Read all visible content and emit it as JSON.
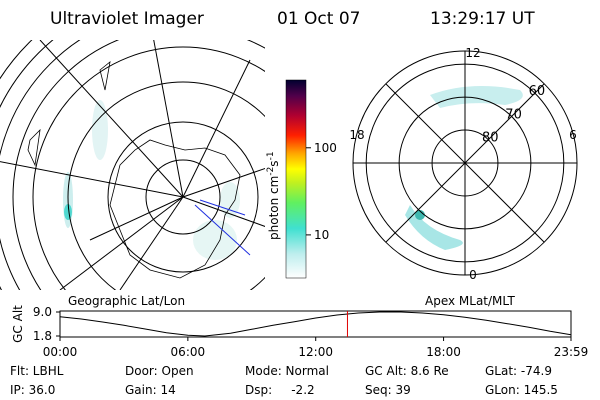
{
  "header": {
    "title": "Ultraviolet Imager",
    "date": "01 Oct 07",
    "time": "13:29:17 UT"
  },
  "colorbar": {
    "label": [
      "photon cm",
      "-2",
      "s",
      "-1"
    ],
    "log": true,
    "lim": [
      3.2,
      600
    ],
    "ticks": [
      10,
      100
    ]
  },
  "geo_map": {
    "label": "Geographic Lat/Lon"
  },
  "mag_map": {
    "label": "Apex MLat/MLT",
    "lat_lim": [
      56,
      90
    ],
    "lat_rings": [
      60,
      70,
      80
    ],
    "mlt_labels": [
      "12",
      "18",
      "6",
      "0"
    ]
  },
  "alt_plot": {
    "ylabel": "GC Alt",
    "ylim": [
      1.8,
      9.0
    ],
    "yticks": [
      {
        "value": 9.0,
        "label": "9.0"
      },
      {
        "value": 1.8,
        "label": "1.8"
      }
    ],
    "xlim": [
      0,
      23.98
    ],
    "xticks": [
      {
        "value": 0,
        "label": "00:00"
      },
      {
        "value": 6,
        "label": "06:00"
      },
      {
        "value": 12,
        "label": "12:00"
      },
      {
        "value": 18,
        "label": "18:00"
      },
      {
        "value": 23.98,
        "label": "23:59"
      }
    ],
    "x": [
      0,
      1,
      2,
      3,
      4,
      5,
      6,
      6.8,
      8,
      9,
      10,
      11,
      12,
      13,
      14,
      15,
      16,
      17,
      18,
      19,
      20,
      21,
      22,
      23,
      23.98
    ],
    "values": [
      7.6,
      6.9,
      6.0,
      5.0,
      3.9,
      2.8,
      2.0,
      1.8,
      2.6,
      3.8,
      5.0,
      6.1,
      7.2,
      8.1,
      8.7,
      9.0,
      9.0,
      8.7,
      8.2,
      7.4,
      6.5,
      5.5,
      4.4,
      3.2,
      2.2
    ],
    "line_color": "#000000",
    "marker": 13.49,
    "marker_color": "#e00000"
  },
  "info": [
    [
      "Flt: LBHL",
      "Door: Open",
      "Mode: Normal",
      "GC Alt: 8.6 Re",
      "GLat: -74.9"
    ],
    [
      "IP: 36.0",
      "Gain: 14",
      "Dsp:     -2.2",
      "Seq: 39",
      "GLon: 145.5"
    ]
  ]
}
